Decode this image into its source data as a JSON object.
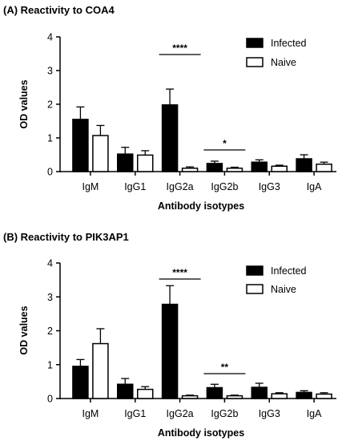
{
  "chart_data": [
    {
      "type": "bar",
      "title": "(A) Reactivity to COA4",
      "xlabel": "Antibody isotypes",
      "ylabel": "OD values",
      "ylim": [
        0,
        4
      ],
      "yticks": [
        0,
        1,
        2,
        3,
        4
      ],
      "categories": [
        "IgM",
        "IgG1",
        "IgG2a",
        "IgG2b",
        "IgG3",
        "IgA"
      ],
      "series": [
        {
          "name": "Infected",
          "color": "#000000",
          "values": [
            1.55,
            0.52,
            1.98,
            0.24,
            0.28,
            0.38
          ],
          "errors": [
            0.37,
            0.2,
            0.47,
            0.07,
            0.07,
            0.12
          ]
        },
        {
          "name": "Naive",
          "color": "#ffffff",
          "values": [
            1.07,
            0.49,
            0.1,
            0.1,
            0.16,
            0.22
          ],
          "errors": [
            0.3,
            0.13,
            0.04,
            0.03,
            0.03,
            0.06
          ]
        }
      ],
      "significance": [
        {
          "category": "IgG2a",
          "label": "****"
        },
        {
          "category": "IgG2b",
          "label": "*"
        }
      ],
      "legend_position": "top-right"
    },
    {
      "type": "bar",
      "title": "(B) Reactivity to PIK3AP1",
      "xlabel": "Antibody isotypes",
      "ylabel": "OD values",
      "ylim": [
        0,
        4
      ],
      "yticks": [
        0,
        1,
        2,
        3,
        4
      ],
      "categories": [
        "IgM",
        "IgG1",
        "IgG2a",
        "IgG2b",
        "IgG3",
        "IgA"
      ],
      "series": [
        {
          "name": "Infected",
          "color": "#000000",
          "values": [
            0.95,
            0.42,
            2.78,
            0.32,
            0.33,
            0.18
          ],
          "errors": [
            0.2,
            0.17,
            0.55,
            0.1,
            0.12,
            0.05
          ]
        },
        {
          "name": "Naive",
          "color": "#ffffff",
          "values": [
            1.62,
            0.27,
            0.08,
            0.08,
            0.14,
            0.13
          ],
          "errors": [
            0.44,
            0.08,
            0.02,
            0.02,
            0.03,
            0.04
          ]
        }
      ],
      "significance": [
        {
          "category": "IgG2a",
          "label": "****"
        },
        {
          "category": "IgG2b",
          "label": "**"
        }
      ],
      "legend_position": "top-right"
    }
  ]
}
